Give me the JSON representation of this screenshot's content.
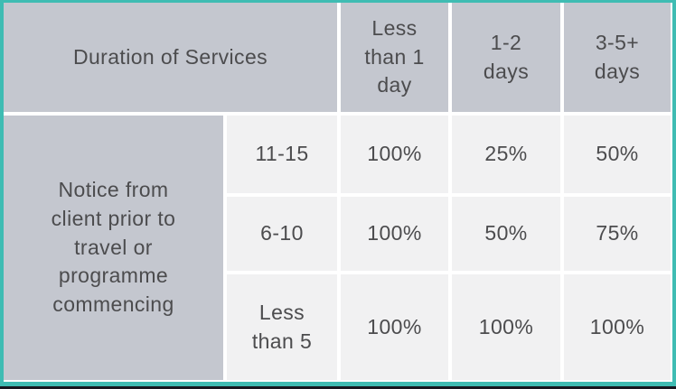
{
  "colors": {
    "accent_teal": "#3fbcb3",
    "frame_bottom_dark": "#17171f",
    "header_fill": "#c4c7cf",
    "cell_fill": "#f1f1f2",
    "gap_white": "#ffffff",
    "text": "#4c4c4e"
  },
  "table": {
    "corner_header": "Duration of Services",
    "column_headers": [
      "Less\nthan 1\nday",
      "1-2\ndays",
      "3-5+\ndays"
    ],
    "row_group_label": "Notice from\nclient prior  to\ntravel or\nprogramme\ncommencing",
    "rows": [
      {
        "label": "11-15",
        "values": [
          "100%",
          "25%",
          "50%"
        ]
      },
      {
        "label": "6-10",
        "values": [
          "100%",
          "50%",
          "75%"
        ]
      },
      {
        "label": "Less\nthan 5",
        "values": [
          "100%",
          "100%",
          "100%"
        ]
      }
    ]
  },
  "chart_data": {
    "type": "table",
    "title": "Duration of Services",
    "columns": [
      "Less than 1 day",
      "1-2 days",
      "3-5+ days"
    ],
    "row_group_label": "Notice from client prior to travel or programme commencing",
    "row_labels": [
      "11-15",
      "6-10",
      "Less than 5"
    ],
    "values_percent": [
      [
        100,
        25,
        50
      ],
      [
        100,
        50,
        75
      ],
      [
        100,
        100,
        100
      ]
    ],
    "cell_values": [
      [
        "100%",
        "25%",
        "50%"
      ],
      [
        "100%",
        "50%",
        "75%"
      ],
      [
        "100%",
        "100%",
        "100%"
      ]
    ],
    "legend_position": "none",
    "grid": false
  }
}
